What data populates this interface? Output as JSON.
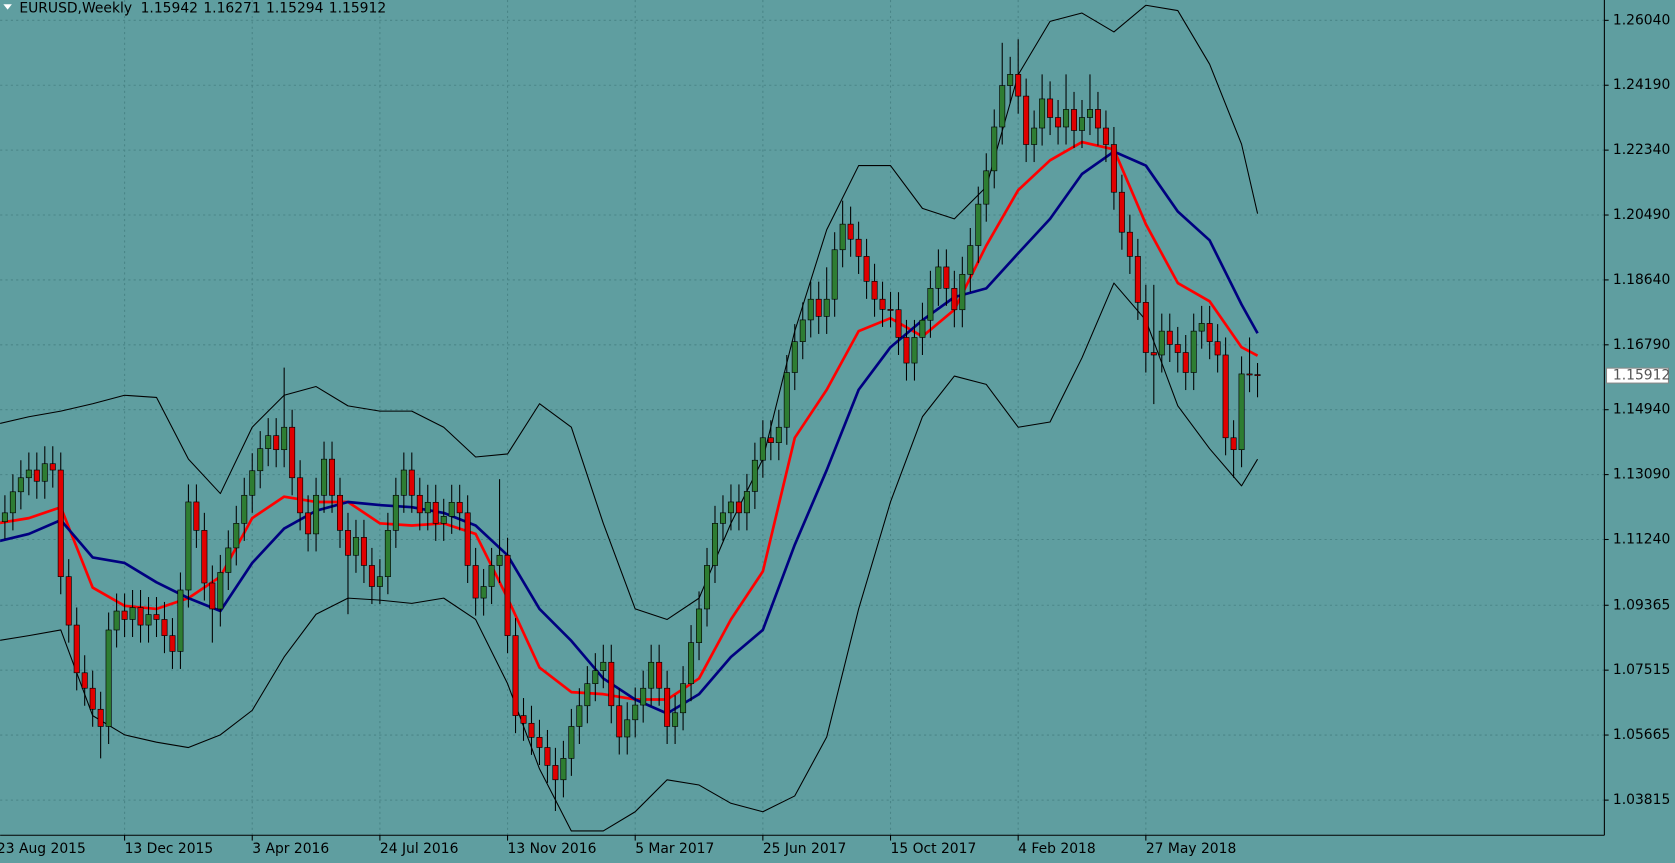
{
  "chart_data": {
    "type": "candlestick",
    "title": "EURUSD,Weekly",
    "up_color": "#2e7d32",
    "down_color": "#e00000",
    "background": "#5f9ea0",
    "grid": true,
    "categories": [
      "23 Aug 2015",
      null,
      null,
      null,
      null,
      null,
      null,
      null,
      null,
      null,
      null,
      null,
      null,
      null,
      null,
      null,
      "13 Dec 2015",
      null,
      null,
      null,
      null,
      null,
      null,
      null,
      null,
      null,
      null,
      null,
      null,
      null,
      null,
      null,
      "3 Apr 2016",
      null,
      null,
      null,
      null,
      null,
      null,
      null,
      null,
      null,
      null,
      null,
      null,
      null,
      null,
      null,
      "24 Jul 2016",
      null,
      null,
      null,
      null,
      null,
      null,
      null,
      null,
      null,
      null,
      null,
      null,
      null,
      null,
      null,
      "13 Nov 2016",
      null,
      null,
      null,
      null,
      null,
      null,
      null,
      null,
      null,
      null,
      null,
      null,
      null,
      null,
      null,
      "5 Mar 2017",
      null,
      null,
      null,
      null,
      null,
      null,
      null,
      null,
      null,
      null,
      null,
      null,
      null,
      null,
      null,
      "25 Jun 2017",
      null,
      null,
      null,
      null,
      null,
      null,
      null,
      null,
      null,
      null,
      null,
      null,
      null,
      null,
      null,
      "15 Oct 2017",
      null,
      null,
      null,
      null,
      null,
      null,
      null,
      null,
      null,
      null,
      null,
      null,
      null,
      null,
      null,
      "4 Feb 2018",
      null,
      null,
      null,
      null,
      null,
      null,
      null,
      null,
      null,
      null,
      null,
      null,
      null,
      null,
      null,
      "27 May 2018",
      null,
      null,
      null,
      null,
      null,
      null,
      null,
      null,
      null,
      null,
      null,
      null,
      null,
      null
    ],
    "open": [
      1.113,
      1.1175,
      1.12,
      1.126,
      1.13,
      1.1322,
      1.129,
      1.134,
      1.1322,
      1.1018,
      1.088,
      1.0744,
      1.07,
      1.064,
      1.0591,
      1.0866,
      1.092,
      1.0896,
      1.093,
      1.088,
      1.091,
      1.0896,
      1.085,
      1.0805,
      1.098,
      1.1231,
      1.115,
      1.1,
      1.0926,
      1.103,
      1.11,
      1.117,
      1.125,
      1.132,
      1.1383,
      1.142,
      1.138,
      1.1444,
      1.13,
      1.12,
      1.114,
      1.125,
      1.1353,
      1.125,
      1.115,
      1.1079,
      1.113,
      1.105,
      1.099,
      1.1018,
      1.115,
      1.125,
      1.1322,
      1.125,
      1.12,
      1.123,
      1.117,
      1.119,
      1.123,
      1.12,
      1.105,
      1.0957,
      1.099,
      1.105,
      1.1079,
      1.085,
      1.0622,
      1.06,
      1.056,
      1.0531,
      1.048,
      1.0439,
      1.05,
      1.0591,
      1.065,
      1.0713,
      1.075,
      1.0774,
      1.065,
      1.0561,
      1.061,
      1.0652,
      1.07,
      1.0774,
      1.07,
      1.0591,
      1.063,
      1.0713,
      1.083,
      1.0926,
      1.105,
      1.117,
      1.12,
      1.1231,
      1.12,
      1.1261,
      1.135,
      1.1414,
      1.14,
      1.1444,
      1.16,
      1.1688,
      1.175,
      1.1809,
      1.176,
      1.1809,
      1.195,
      1.2023,
      1.198,
      1.1931,
      1.186,
      1.1809,
      1.178,
      1.1779,
      1.17,
      1.1627,
      1.17,
      1.1749,
      1.184,
      1.1901,
      1.184,
      1.1779,
      1.188,
      1.1962,
      1.208,
      1.2175,
      1.23,
      1.2418,
      1.245,
      1.2388,
      1.225,
      1.2297,
      1.238,
      1.2327,
      1.23,
      1.235,
      1.229,
      1.2327,
      1.235,
      1.2297,
      1.225,
      1.2114,
      1.2,
      1.1931,
      1.18,
      1.1657,
      1.165,
      1.1718,
      1.168,
      1.1657,
      1.16,
      1.1718,
      1.174,
      1.1688,
      1.165,
      1.1414,
      1.138,
      1.1596,
      1.15942
    ],
    "high": [
      1.1225,
      1.125,
      1.131,
      1.135,
      1.1372,
      1.1372,
      1.139,
      1.139,
      1.1372,
      1.1068,
      1.093,
      1.0794,
      1.075,
      1.069,
      1.0916,
      1.097,
      1.097,
      1.098,
      1.098,
      1.096,
      1.096,
      1.0946,
      1.09,
      1.103,
      1.1281,
      1.1281,
      1.12,
      1.105,
      1.108,
      1.115,
      1.122,
      1.13,
      1.137,
      1.1433,
      1.147,
      1.147,
      1.1614,
      1.1494,
      1.135,
      1.125,
      1.13,
      1.1403,
      1.1403,
      1.13,
      1.12,
      1.118,
      1.118,
      1.11,
      1.1068,
      1.12,
      1.13,
      1.1372,
      1.1372,
      1.13,
      1.128,
      1.128,
      1.124,
      1.128,
      1.128,
      1.125,
      1.11,
      1.104,
      1.11,
      1.1296,
      1.1129,
      1.09,
      1.0672,
      1.065,
      1.061,
      1.0581,
      1.053,
      1.055,
      1.0641,
      1.07,
      1.0763,
      1.08,
      1.0824,
      1.0824,
      1.07,
      1.066,
      1.0702,
      1.075,
      1.0824,
      1.0824,
      1.075,
      1.068,
      1.0763,
      1.088,
      1.0976,
      1.11,
      1.122,
      1.125,
      1.1281,
      1.1281,
      1.1311,
      1.14,
      1.1464,
      1.1464,
      1.1494,
      1.165,
      1.1738,
      1.18,
      1.1859,
      1.1859,
      1.19,
      1.2,
      1.209,
      1.2073,
      1.203,
      1.1981,
      1.191,
      1.1859,
      1.183,
      1.1829,
      1.175,
      1.175,
      1.1799,
      1.189,
      1.1951,
      1.1951,
      1.189,
      1.193,
      1.2012,
      1.213,
      1.2225,
      1.235,
      1.254,
      1.25,
      1.255,
      1.2438,
      1.2347,
      1.245,
      1.243,
      1.2377,
      1.245,
      1.24,
      1.2377,
      1.245,
      1.24,
      1.2347,
      1.23,
      1.2164,
      1.205,
      1.1981,
      1.185,
      1.185,
      1.1768,
      1.1768,
      1.173,
      1.1707,
      1.1768,
      1.179,
      1.179,
      1.1738,
      1.17,
      1.1464,
      1.1646,
      1.17,
      1.16271
    ],
    "low": [
      1.108,
      1.1125,
      1.115,
      1.121,
      1.125,
      1.124,
      1.124,
      1.1272,
      1.0968,
      1.083,
      1.0694,
      1.065,
      1.059,
      1.05,
      1.0541,
      1.0816,
      1.0846,
      1.0846,
      1.083,
      1.083,
      1.0846,
      1.08,
      1.0755,
      1.0755,
      1.093,
      1.11,
      1.095,
      1.083,
      1.0876,
      1.098,
      1.105,
      1.112,
      1.12,
      1.127,
      1.1333,
      1.133,
      1.133,
      1.125,
      1.115,
      1.109,
      1.109,
      1.12,
      1.12,
      1.11,
      1.0911,
      1.1029,
      1.1,
      1.094,
      1.094,
      1.0968,
      1.11,
      1.12,
      1.12,
      1.115,
      1.115,
      1.112,
      1.112,
      1.114,
      1.115,
      1.1,
      1.0907,
      1.0907,
      1.094,
      1.1,
      1.08,
      1.0572,
      1.055,
      1.051,
      1.0481,
      1.043,
      1.035,
      1.0389,
      1.045,
      1.0541,
      1.06,
      1.0663,
      1.07,
      1.06,
      1.0511,
      1.0511,
      1.056,
      1.0602,
      1.065,
      1.065,
      1.0541,
      1.0541,
      1.058,
      1.0663,
      1.078,
      1.0876,
      1.1,
      1.112,
      1.115,
      1.115,
      1.115,
      1.1211,
      1.13,
      1.135,
      1.135,
      1.1394,
      1.155,
      1.1638,
      1.17,
      1.171,
      1.171,
      1.1759,
      1.19,
      1.193,
      1.1881,
      1.181,
      1.1759,
      1.173,
      1.1729,
      1.165,
      1.1577,
      1.1577,
      1.165,
      1.1699,
      1.179,
      1.179,
      1.1729,
      1.1729,
      1.183,
      1.1912,
      1.203,
      1.2125,
      1.225,
      1.2368,
      1.2338,
      1.22,
      1.22,
      1.2247,
      1.2277,
      1.225,
      1.225,
      1.224,
      1.224,
      1.2277,
      1.2247,
      1.22,
      1.2064,
      1.195,
      1.1881,
      1.175,
      1.16,
      1.151,
      1.16,
      1.163,
      1.16,
      1.155,
      1.155,
      1.1668,
      1.1638,
      1.16,
      1.1364,
      1.13,
      1.133,
      1.1544,
      1.15294
    ],
    "close": [
      1.1175,
      1.12,
      1.126,
      1.13,
      1.1322,
      1.129,
      1.134,
      1.1322,
      1.1018,
      1.088,
      1.0744,
      1.07,
      1.064,
      1.0591,
      1.0866,
      1.092,
      1.0896,
      1.093,
      1.088,
      1.091,
      1.0896,
      1.085,
      1.0805,
      1.098,
      1.1231,
      1.115,
      1.1,
      1.0926,
      1.103,
      1.11,
      1.117,
      1.125,
      1.132,
      1.1383,
      1.142,
      1.138,
      1.1444,
      1.13,
      1.12,
      1.114,
      1.125,
      1.1353,
      1.125,
      1.115,
      1.1079,
      1.113,
      1.105,
      1.099,
      1.1018,
      1.115,
      1.125,
      1.1322,
      1.125,
      1.12,
      1.123,
      1.117,
      1.119,
      1.123,
      1.12,
      1.105,
      1.0957,
      1.099,
      1.105,
      1.1079,
      1.085,
      1.0622,
      1.06,
      1.056,
      1.0531,
      1.048,
      1.0439,
      1.05,
      1.0591,
      1.065,
      1.0713,
      1.075,
      1.0774,
      1.065,
      1.0561,
      1.061,
      1.0652,
      1.07,
      1.0774,
      1.07,
      1.0591,
      1.063,
      1.0713,
      1.083,
      1.0926,
      1.105,
      1.117,
      1.12,
      1.1231,
      1.12,
      1.1261,
      1.135,
      1.1414,
      1.14,
      1.1444,
      1.16,
      1.1688,
      1.175,
      1.1809,
      1.176,
      1.1809,
      1.195,
      1.2023,
      1.198,
      1.1931,
      1.186,
      1.1809,
      1.178,
      1.1779,
      1.17,
      1.1627,
      1.17,
      1.1749,
      1.184,
      1.1901,
      1.184,
      1.1779,
      1.188,
      1.1962,
      1.208,
      1.2175,
      1.23,
      1.2418,
      1.245,
      1.2388,
      1.225,
      1.2297,
      1.238,
      1.2327,
      1.23,
      1.235,
      1.229,
      1.2327,
      1.235,
      1.2297,
      1.225,
      1.2114,
      1.2,
      1.1931,
      1.18,
      1.1657,
      1.165,
      1.1718,
      1.168,
      1.1657,
      1.16,
      1.1718,
      1.174,
      1.1688,
      1.165,
      1.1414,
      1.138,
      1.1596,
      1.1594,
      1.15912
    ],
    "lines": [
      {
        "color": "#ff0000",
        "x": [
          0,
          4,
          8,
          12,
          16,
          20,
          24,
          28,
          32,
          36,
          40,
          44,
          48,
          52,
          56,
          60,
          64,
          68,
          72,
          76,
          80,
          84,
          88,
          92,
          96,
          100,
          104,
          108,
          112,
          116,
          120,
          124,
          128,
          132,
          136,
          140,
          144,
          148,
          152,
          156,
          158
        ],
        "values": [
          1.117,
          1.1185,
          1.1216,
          1.0987,
          1.0935,
          1.0926,
          1.0957,
          1.1018,
          1.1185,
          1.1246,
          1.1231,
          1.1231,
          1.117,
          1.1164,
          1.117,
          1.114,
          1.0957,
          1.0759,
          1.0689,
          1.0683,
          1.0668,
          1.0668,
          1.0728,
          1.0896,
          1.1033,
          1.1414,
          1.1551,
          1.1718,
          1.1755,
          1.1703,
          1.1779,
          1.1962,
          1.212,
          1.2205,
          1.2257,
          1.2236,
          1.2023,
          1.1855,
          1.1803,
          1.1672,
          1.1648
        ]
      },
      {
        "color": "#000080",
        "x": [
          0,
          4,
          8,
          12,
          16,
          20,
          24,
          28,
          32,
          36,
          40,
          44,
          48,
          52,
          56,
          60,
          64,
          68,
          72,
          76,
          80,
          84,
          88,
          92,
          96,
          100,
          104,
          108,
          112,
          116,
          120,
          124,
          128,
          132,
          136,
          140,
          144,
          148,
          152,
          156,
          158
        ],
        "values": [
          1.1118,
          1.114,
          1.1179,
          1.1073,
          1.1057,
          1.1002,
          1.0957,
          1.092,
          1.1057,
          1.1155,
          1.1206,
          1.1231,
          1.1222,
          1.1216,
          1.12,
          1.1164,
          1.1079,
          1.0926,
          1.0835,
          1.0728,
          1.0668,
          1.0628,
          1.0683,
          1.0789,
          1.0866,
          1.1109,
          1.1322,
          1.1551,
          1.1672,
          1.1749,
          1.1815,
          1.184,
          1.194,
          1.2038,
          1.2166,
          1.223,
          1.219,
          1.2059,
          1.1977,
          1.1794,
          1.1712
        ]
      },
      {
        "color": "#000000",
        "x": [
          0,
          4,
          8,
          12,
          16,
          20,
          24,
          28,
          32,
          36,
          40,
          44,
          48,
          52,
          56,
          60,
          64,
          68,
          72,
          76,
          80,
          84,
          88,
          92,
          96,
          100,
          104,
          108,
          112,
          116,
          120,
          124,
          128,
          132,
          136,
          140,
          144,
          148,
          152,
          156,
          158
        ],
        "values": [
          1.1453,
          1.1474,
          1.149,
          1.1511,
          1.1535,
          1.1529,
          1.1353,
          1.1255,
          1.1444,
          1.1535,
          1.156,
          1.1505,
          1.149,
          1.149,
          1.1444,
          1.1359,
          1.1368,
          1.1511,
          1.1444,
          1.117,
          1.0926,
          1.0896,
          1.0957,
          1.117,
          1.1353,
          1.1718,
          1.2007,
          1.219,
          1.219,
          1.2068,
          1.2038,
          1.2129,
          1.2449,
          1.2601,
          1.2625,
          1.2571,
          1.2647,
          1.2632,
          1.2479,
          1.2251,
          1.2053
        ]
      },
      {
        "color": "#000000",
        "x": [
          0,
          4,
          8,
          12,
          16,
          20,
          24,
          28,
          32,
          36,
          40,
          44,
          48,
          52,
          56,
          60,
          64,
          68,
          72,
          76,
          80,
          84,
          88,
          92,
          96,
          100,
          104,
          108,
          112,
          116,
          120,
          124,
          128,
          132,
          136,
          140,
          144,
          148,
          152,
          156,
          158
        ],
        "values": [
          1.0835,
          1.085,
          1.0866,
          1.0622,
          1.0567,
          1.0546,
          1.0531,
          1.0567,
          1.0637,
          1.0789,
          1.0911,
          1.0957,
          1.0951,
          1.0942,
          1.0957,
          1.0896,
          1.0713,
          1.047,
          1.0293,
          1.0293,
          1.0348,
          1.0439,
          1.0424,
          1.0372,
          1.0348,
          1.0393,
          1.0561,
          1.0926,
          1.1231,
          1.1474,
          1.159,
          1.1566,
          1.1444,
          1.1459,
          1.1642,
          1.1855,
          1.1749,
          1.1505,
          1.1383,
          1.1277,
          1.1353
        ]
      }
    ],
    "ylim": [
      1.0287,
      1.2662
    ],
    "yticks": [
      {
        "value": 1.0381,
        "label": "1.03815"
      },
      1.05665,
      1.07515,
      1.09365,
      {
        "value": 1.1124,
        "label": "1.11240"
      },
      {
        "value": 1.1309,
        "label": "1.13090"
      },
      {
        "value": 1.1494,
        "label": "1.14940"
      },
      {
        "value": 1.1679,
        "label": "1.16790"
      },
      {
        "value": 1.1864,
        "label": "1.18640"
      },
      {
        "value": 1.2049,
        "label": "1.20490"
      },
      {
        "value": 1.2234,
        "label": "1.22340"
      },
      {
        "value": 1.2419,
        "label": "1.24190"
      },
      {
        "value": 1.2604,
        "label": "1.26040"
      }
    ]
  }
}
